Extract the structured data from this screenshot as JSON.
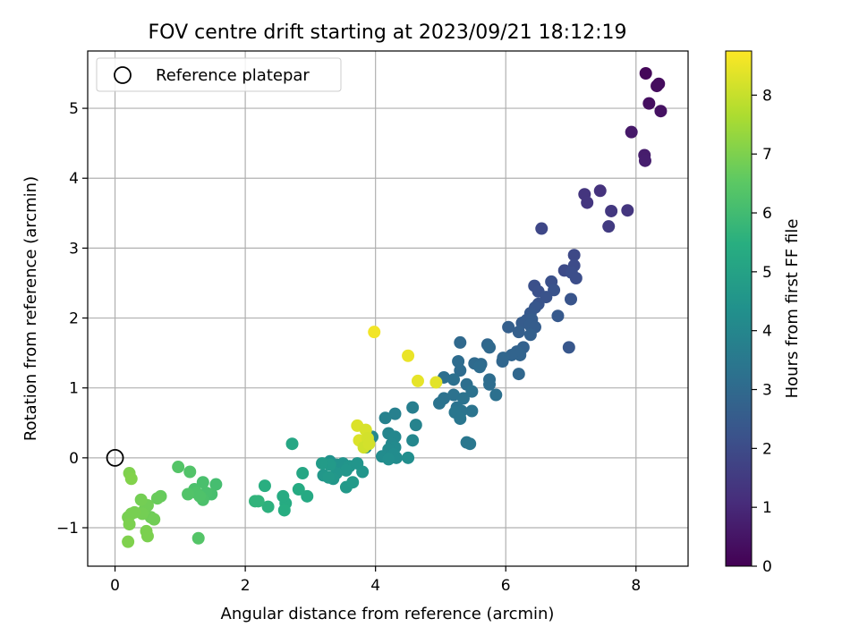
{
  "chart_data": {
    "type": "scatter",
    "title": "FOV centre drift starting at 2023/09/21 18:12:19",
    "xlabel": "Angular distance from reference (arcmin)",
    "ylabel": "Rotation from reference (arcmin)",
    "xlim": [
      -0.42,
      8.8
    ],
    "ylim": [
      -1.55,
      5.82
    ],
    "xticks": [
      0,
      2,
      4,
      6,
      8
    ],
    "yticks": [
      -1,
      0,
      1,
      2,
      3,
      4,
      5
    ],
    "grid": true,
    "legend": {
      "location": "upper-left",
      "label": "Reference platepar"
    },
    "reference_point": {
      "x": 0,
      "y": 0
    },
    "colorbar": {
      "label": "Hours from first FF file",
      "colormap": "viridis",
      "range": [
        0,
        8.75
      ],
      "ticks": [
        0,
        1,
        2,
        3,
        4,
        5,
        6,
        7,
        8
      ]
    },
    "points": [
      [
        8.15,
        5.5,
        0.15
      ],
      [
        8.35,
        5.35,
        0.25
      ],
      [
        8.32,
        5.32,
        0.3
      ],
      [
        8.2,
        5.07,
        0.35
      ],
      [
        8.38,
        4.96,
        0.4
      ],
      [
        7.93,
        4.66,
        0.6
      ],
      [
        8.13,
        4.33,
        0.7
      ],
      [
        8.14,
        4.25,
        0.75
      ],
      [
        7.21,
        3.77,
        1.35
      ],
      [
        7.45,
        3.82,
        1.3
      ],
      [
        7.25,
        3.65,
        1.4
      ],
      [
        7.62,
        3.53,
        1.45
      ],
      [
        7.87,
        3.54,
        1.4
      ],
      [
        7.58,
        3.31,
        1.55
      ],
      [
        6.55,
        3.28,
        1.9
      ],
      [
        7.05,
        2.9,
        1.95
      ],
      [
        6.9,
        2.68,
        2.0
      ],
      [
        7.05,
        2.75,
        2.05
      ],
      [
        7.01,
        2.65,
        2.1
      ],
      [
        7.08,
        2.57,
        2.1
      ],
      [
        6.44,
        2.46,
        2.15
      ],
      [
        6.7,
        2.52,
        2.15
      ],
      [
        6.5,
        2.38,
        2.2
      ],
      [
        6.74,
        2.4,
        2.25
      ],
      [
        6.62,
        2.3,
        2.25
      ],
      [
        6.5,
        2.2,
        2.3
      ],
      [
        7.0,
        2.27,
        2.3
      ],
      [
        6.45,
        2.15,
        2.4
      ],
      [
        6.38,
        2.07,
        2.45
      ],
      [
        6.8,
        2.03,
        2.45
      ],
      [
        6.32,
        1.97,
        2.5
      ],
      [
        6.25,
        1.93,
        2.55
      ],
      [
        6.4,
        1.98,
        2.55
      ],
      [
        6.37,
        1.9,
        2.6
      ],
      [
        6.45,
        1.87,
        2.6
      ],
      [
        6.04,
        1.87,
        2.65
      ],
      [
        6.2,
        1.8,
        2.65
      ],
      [
        6.38,
        1.76,
        2.7
      ],
      [
        6.27,
        1.58,
        2.75
      ],
      [
        6.97,
        1.58,
        2.4
      ],
      [
        6.17,
        1.52,
        2.8
      ],
      [
        6.22,
        1.47,
        2.85
      ],
      [
        6.09,
        1.47,
        2.85
      ],
      [
        5.96,
        1.43,
        2.9
      ],
      [
        5.95,
        1.38,
        2.9
      ],
      [
        6.2,
        1.2,
        2.95
      ],
      [
        5.72,
        1.62,
        2.95
      ],
      [
        5.75,
        1.58,
        3.0
      ],
      [
        5.3,
        1.65,
        3.0
      ],
      [
        5.52,
        1.35,
        3.05
      ],
      [
        5.62,
        1.34,
        3.05
      ],
      [
        5.6,
        1.3,
        3.1
      ],
      [
        5.27,
        1.38,
        3.1
      ],
      [
        5.3,
        1.25,
        3.1
      ],
      [
        5.75,
        1.12,
        3.15
      ],
      [
        5.75,
        1.05,
        3.15
      ],
      [
        5.05,
        1.15,
        3.2
      ],
      [
        5.4,
        1.05,
        3.2
      ],
      [
        5.2,
        1.12,
        3.25
      ],
      [
        5.85,
        0.9,
        3.25
      ],
      [
        5.48,
        0.95,
        3.3
      ],
      [
        5.2,
        0.9,
        3.3
      ],
      [
        5.05,
        0.85,
        3.3
      ],
      [
        5.35,
        0.85,
        3.35
      ],
      [
        4.98,
        0.78,
        3.35
      ],
      [
        5.25,
        0.72,
        3.35
      ],
      [
        5.48,
        0.67,
        3.4
      ],
      [
        5.32,
        0.67,
        3.4
      ],
      [
        5.22,
        0.65,
        3.45
      ],
      [
        5.3,
        0.56,
        3.45
      ],
      [
        5.4,
        0.22,
        3.5
      ],
      [
        5.45,
        0.2,
        3.5
      ],
      [
        4.57,
        0.72,
        3.75
      ],
      [
        4.3,
        0.63,
        3.8
      ],
      [
        4.15,
        0.57,
        3.85
      ],
      [
        4.62,
        0.47,
        3.9
      ],
      [
        4.2,
        0.35,
        4.0
      ],
      [
        4.3,
        0.3,
        4.05
      ],
      [
        4.57,
        0.25,
        4.05
      ],
      [
        3.95,
        0.3,
        4.1
      ],
      [
        4.25,
        0.2,
        4.1
      ],
      [
        4.3,
        0.15,
        4.15
      ],
      [
        4.2,
        0.12,
        4.15
      ],
      [
        3.85,
        0.15,
        4.2
      ],
      [
        4.1,
        0.02,
        4.25
      ],
      [
        4.28,
        0.05,
        4.25
      ],
      [
        4.32,
        0.0,
        4.25
      ],
      [
        4.5,
        0.0,
        4.3
      ],
      [
        4.2,
        -0.02,
        4.3
      ],
      [
        3.3,
        -0.05,
        4.45
      ],
      [
        3.4,
        -0.1,
        4.5
      ],
      [
        3.5,
        -0.08,
        4.5
      ],
      [
        3.6,
        -0.12,
        4.55
      ],
      [
        3.72,
        -0.08,
        4.55
      ],
      [
        3.55,
        -0.18,
        4.6
      ],
      [
        3.4,
        -0.22,
        4.6
      ],
      [
        3.2,
        -0.25,
        4.65
      ],
      [
        3.35,
        -0.3,
        4.65
      ],
      [
        3.8,
        -0.2,
        4.6
      ],
      [
        3.55,
        -0.42,
        4.7
      ],
      [
        3.28,
        -0.28,
        4.7
      ],
      [
        3.65,
        -0.35,
        4.75
      ],
      [
        3.3,
        -0.1,
        4.75
      ],
      [
        3.18,
        -0.08,
        4.8
      ],
      [
        2.72,
        0.2,
        5.2
      ],
      [
        2.88,
        -0.22,
        5.2
      ],
      [
        2.95,
        -0.55,
        5.3
      ],
      [
        2.82,
        -0.45,
        5.35
      ],
      [
        2.62,
        -0.65,
        5.4
      ],
      [
        2.58,
        -0.55,
        5.4
      ],
      [
        2.6,
        -0.75,
        5.45
      ],
      [
        2.3,
        -0.4,
        5.5
      ],
      [
        2.35,
        -0.7,
        5.6
      ],
      [
        2.2,
        -0.62,
        5.7
      ],
      [
        2.15,
        -0.62,
        5.7
      ],
      [
        1.55,
        -0.38,
        6.1
      ],
      [
        1.48,
        -0.52,
        6.15
      ],
      [
        1.35,
        -0.35,
        6.2
      ],
      [
        1.4,
        -0.5,
        6.2
      ],
      [
        1.35,
        -0.6,
        6.25
      ],
      [
        1.22,
        -0.45,
        6.25
      ],
      [
        1.25,
        -0.5,
        6.3
      ],
      [
        1.3,
        -0.55,
        6.3
      ],
      [
        1.12,
        -0.52,
        6.35
      ],
      [
        1.15,
        -0.2,
        6.35
      ],
      [
        0.97,
        -0.13,
        6.4
      ],
      [
        1.28,
        -1.15,
        6.4
      ],
      [
        0.7,
        -0.55,
        6.7
      ],
      [
        0.65,
        -0.58,
        6.75
      ],
      [
        0.55,
        -0.85,
        6.8
      ],
      [
        0.6,
        -0.88,
        6.85
      ],
      [
        0.45,
        -0.75,
        6.85
      ],
      [
        0.5,
        -0.68,
        6.85
      ],
      [
        0.4,
        -0.6,
        6.9
      ],
      [
        0.42,
        -0.8,
        6.9
      ],
      [
        0.3,
        -0.78,
        6.95
      ],
      [
        0.25,
        -0.8,
        6.95
      ],
      [
        0.2,
        -0.85,
        6.95
      ],
      [
        0.22,
        -0.95,
        7.0
      ],
      [
        0.48,
        -1.05,
        7.0
      ],
      [
        0.5,
        -1.12,
        7.0
      ],
      [
        0.2,
        -1.2,
        7.05
      ],
      [
        0.22,
        -0.22,
        7.05
      ],
      [
        0.25,
        -0.3,
        7.1
      ],
      [
        3.98,
        1.8,
        8.6
      ],
      [
        4.5,
        1.46,
        8.5
      ],
      [
        4.65,
        1.1,
        8.45
      ],
      [
        4.93,
        1.08,
        8.4
      ],
      [
        3.72,
        0.46,
        8.3
      ],
      [
        3.85,
        0.4,
        8.25
      ],
      [
        3.75,
        0.25,
        8.3
      ],
      [
        3.88,
        0.28,
        8.2
      ],
      [
        3.82,
        0.15,
        8.15
      ],
      [
        3.9,
        0.2,
        8.2
      ]
    ]
  }
}
